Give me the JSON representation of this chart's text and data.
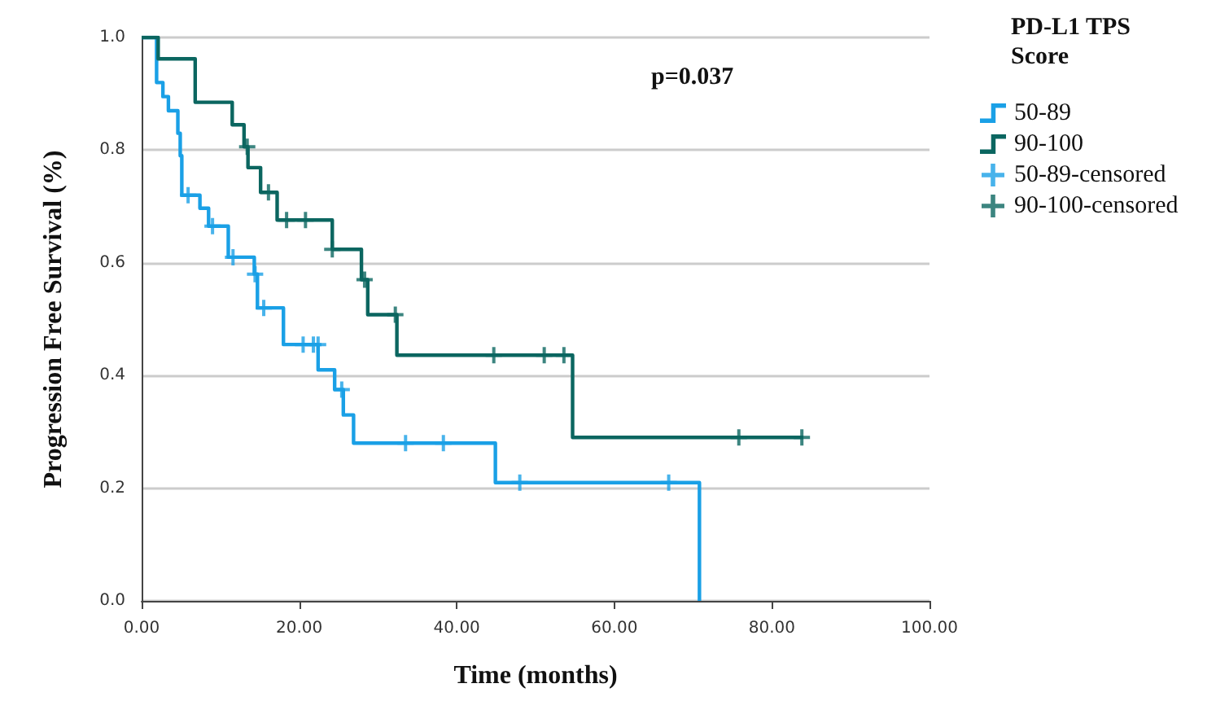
{
  "chart_data": {
    "type": "step",
    "xlabel": "Time (months)",
    "ylabel": "Progression Free Survival (%)",
    "legend_title": "PD-L1 TPS Score",
    "annotations": [
      "p=0.037"
    ],
    "xlim": [
      0,
      100
    ],
    "xticks": [
      {
        "value": 0,
        "label": "0.00"
      },
      {
        "value": 20,
        "label": "20.00"
      },
      {
        "value": 40,
        "label": "40.00"
      },
      {
        "value": 60,
        "label": "60.00"
      },
      {
        "value": 80,
        "label": "80.00"
      },
      {
        "value": 100,
        "label": "100.00"
      }
    ],
    "ylim": [
      0,
      1
    ],
    "yticks": [
      {
        "value": 0,
        "label": "0.0"
      },
      {
        "value": 0.2,
        "label": "0.2"
      },
      {
        "value": 0.4,
        "label": "0.4"
      },
      {
        "value": 0.6,
        "label": "0.6"
      },
      {
        "value": 0.8,
        "label": "0.8"
      },
      {
        "value": 1,
        "label": "1.0"
      }
    ],
    "grid": "y",
    "legend": "right",
    "marker": "none",
    "series": [
      {
        "name": "50-89",
        "color": "#1aa0e6",
        "x": [
          0,
          1.9,
          2.7,
          3.4,
          4.6,
          4.9,
          5.1,
          7.4,
          8.5,
          11.0,
          14.3,
          14.7,
          18.0,
          22.4,
          24.5,
          25.6,
          26.9,
          44.9,
          70.8
        ],
        "values": [
          1,
          0.92,
          0.895,
          0.87,
          0.83,
          0.79,
          0.72,
          0.697,
          0.665,
          0.61,
          0.58,
          0.52,
          0.455,
          0.41,
          0.375,
          0.33,
          0.28,
          0.21,
          0
        ]
      },
      {
        "name": "90-100",
        "color": "#0b6660",
        "x": [
          0,
          2.1,
          6.8,
          11.5,
          13.0,
          13.5,
          15.1,
          17.2,
          24.2,
          27.9,
          28.7,
          32.4,
          54.7,
          84
        ],
        "values": [
          1,
          0.962,
          0.885,
          0.845,
          0.806,
          0.769,
          0.725,
          0.676,
          0.624,
          0.57,
          0.508,
          0.436,
          0.29,
          0.29
        ]
      },
      {
        "name": "50-89-censored",
        "type": "scatter",
        "marker": "cross",
        "color": "#1aa0e6",
        "x": [
          5.9,
          9.0,
          11.6,
          14.4,
          15.5,
          20.5,
          21.8,
          22.4,
          25.4,
          33.5,
          38.3,
          48.0,
          66.9
        ],
        "values": [
          0.72,
          0.665,
          0.61,
          0.58,
          0.52,
          0.455,
          0.455,
          0.455,
          0.375,
          0.28,
          0.28,
          0.21,
          0.21
        ]
      },
      {
        "name": "90-100-censored",
        "type": "scatter",
        "marker": "cross",
        "color": "#0b6660",
        "x": [
          13.4,
          16.1,
          18.4,
          20.8,
          24.2,
          28.3,
          32.2,
          44.7,
          51.1,
          53.6,
          75.8,
          83.8
        ],
        "values": [
          0.806,
          0.725,
          0.676,
          0.676,
          0.624,
          0.57,
          0.508,
          0.436,
          0.436,
          0.436,
          0.29,
          0.29
        ]
      }
    ]
  }
}
